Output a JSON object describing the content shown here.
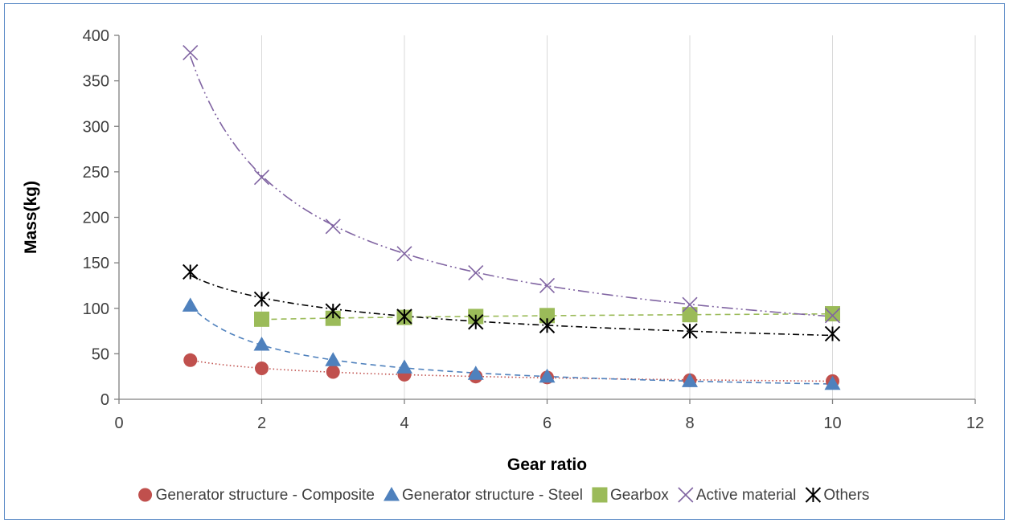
{
  "chart_data": {
    "type": "scatter",
    "title": "",
    "xlabel": "Gear ratio",
    "ylabel": "Mass(kg)",
    "xlim": [
      0,
      12
    ],
    "ylim": [
      0,
      400
    ],
    "xticks": [
      0,
      2,
      4,
      6,
      8,
      10,
      12
    ],
    "yticks": [
      0,
      50,
      100,
      150,
      200,
      250,
      300,
      350,
      400
    ],
    "grid": "vertical",
    "legend_position": "bottom",
    "trendlines": "power",
    "series": [
      {
        "name": "Generator structure - Composite",
        "marker": "circle",
        "color": "#c0504d",
        "line_style": "dotted",
        "x": [
          1,
          2,
          3,
          4,
          5,
          6,
          8,
          10
        ],
        "y": [
          43,
          34,
          30,
          27,
          25,
          24,
          21,
          20
        ]
      },
      {
        "name": "Generator structure - Steel",
        "marker": "triangle",
        "color": "#4f81bd",
        "line_style": "dashed",
        "x": [
          1,
          2,
          3,
          4,
          5,
          6,
          8,
          10
        ],
        "y": [
          103,
          60,
          43,
          35,
          28,
          25,
          20,
          17
        ]
      },
      {
        "name": "Gearbox",
        "marker": "square",
        "color": "#9bbb59",
        "line_style": "dashed",
        "x": [
          2,
          3,
          4,
          5,
          6,
          8,
          10
        ],
        "y": [
          88,
          89,
          90,
          91,
          92,
          93,
          94
        ]
      },
      {
        "name": "Active material",
        "marker": "x",
        "color": "#8064a2",
        "line_style": "long-dash-dot-dot",
        "x": [
          1,
          2,
          3,
          4,
          5,
          6,
          8,
          10
        ],
        "y": [
          381,
          244,
          190,
          160,
          139,
          125,
          104,
          92
        ]
      },
      {
        "name": "Others",
        "marker": "asterisk",
        "color": "#000000",
        "line_style": "dash-dot",
        "x": [
          1,
          2,
          3,
          4,
          5,
          6,
          8,
          10
        ],
        "y": [
          140,
          110,
          97,
          91,
          85,
          81,
          75,
          72
        ]
      }
    ]
  }
}
